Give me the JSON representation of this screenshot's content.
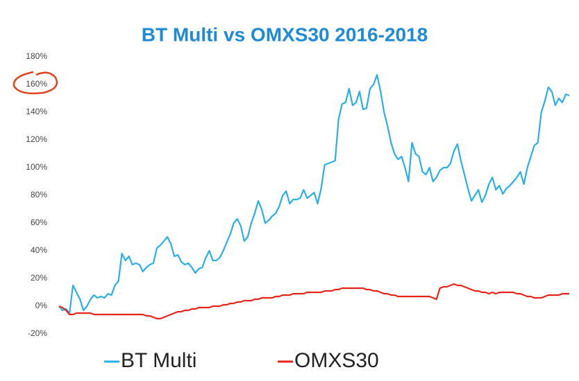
{
  "chart_data": {
    "type": "line",
    "title": "BT Multi vs OMXS30 2016-2018",
    "ylim": [
      -20,
      180
    ],
    "yticks": [
      {
        "value": -20,
        "label": "-20%"
      },
      {
        "value": 0,
        "label": "0%"
      },
      {
        "value": 20,
        "label": "20%"
      },
      {
        "value": 40,
        "label": "40%"
      },
      {
        "value": 60,
        "label": "60%"
      },
      {
        "value": 80,
        "label": "80%"
      },
      {
        "value": 100,
        "label": "100%"
      },
      {
        "value": 120,
        "label": "120%"
      },
      {
        "value": 140,
        "label": "140%"
      },
      {
        "value": 160,
        "label": "160%"
      },
      {
        "value": 180,
        "label": "180%"
      }
    ],
    "grid": false,
    "legend": "bottom",
    "series": [
      {
        "name": "BT Multi",
        "color": "#29aee8",
        "values": [
          0,
          -3,
          -2,
          -5,
          15,
          10,
          5,
          -3,
          0,
          5,
          8,
          6,
          7,
          6,
          9,
          8,
          15,
          18,
          38,
          33,
          36,
          30,
          31,
          30,
          25,
          28,
          30,
          31,
          42,
          44,
          47,
          50,
          45,
          36,
          37,
          32,
          30,
          31,
          28,
          24,
          27,
          28,
          35,
          40,
          33,
          33,
          35,
          40,
          46,
          52,
          60,
          63,
          58,
          47,
          50,
          60,
          67,
          76,
          70,
          60,
          62,
          65,
          67,
          72,
          80,
          83,
          74,
          77,
          77,
          78,
          84,
          78,
          80,
          82,
          74,
          85,
          102,
          103,
          104,
          105,
          135,
          146,
          147,
          157,
          145,
          147,
          155,
          142,
          143,
          157,
          160,
          167,
          155,
          140,
          130,
          118,
          110,
          106,
          108,
          100,
          90,
          118,
          110,
          108,
          97,
          95,
          100,
          90,
          93,
          98,
          100,
          100,
          103,
          112,
          117,
          105,
          95,
          85,
          76,
          80,
          84,
          75,
          80,
          88,
          93,
          84,
          87,
          81,
          85,
          87,
          90,
          93,
          97,
          88,
          100,
          108,
          116,
          118,
          140,
          148,
          158,
          155,
          145,
          150,
          147,
          153,
          152
        ]
      },
      {
        "name": "OMXS30",
        "color": "#e8231a",
        "values": [
          0,
          -1,
          -3,
          -6,
          -6,
          -5,
          -5,
          -5,
          -5,
          -5,
          -6,
          -6,
          -6,
          -6,
          -6,
          -6,
          -6,
          -6,
          -6,
          -6,
          -6,
          -6,
          -6,
          -6,
          -6,
          -7,
          -7,
          -8,
          -9,
          -9,
          -8,
          -7,
          -6,
          -5,
          -4,
          -4,
          -3,
          -3,
          -2,
          -2,
          -1,
          -1,
          -1,
          -1,
          0,
          0,
          0,
          1,
          1,
          2,
          2,
          3,
          3,
          4,
          4,
          4,
          5,
          5,
          6,
          6,
          6,
          6,
          7,
          7,
          8,
          8,
          8,
          9,
          9,
          9,
          9,
          10,
          10,
          10,
          10,
          10,
          11,
          11,
          11,
          12,
          12,
          13,
          13,
          13,
          13,
          13,
          13,
          13,
          12,
          12,
          11,
          11,
          10,
          9,
          9,
          8,
          8,
          7,
          7,
          7,
          7,
          7,
          7,
          7,
          7,
          7,
          7,
          6,
          5,
          13,
          14,
          14,
          15,
          16,
          15,
          15,
          14,
          13,
          12,
          11,
          11,
          10,
          10,
          9,
          10,
          9,
          10,
          10,
          10,
          10,
          10,
          9,
          9,
          8,
          7,
          7,
          6,
          6,
          6,
          7,
          8,
          8,
          8,
          8,
          9,
          9,
          9
        ]
      }
    ]
  }
}
